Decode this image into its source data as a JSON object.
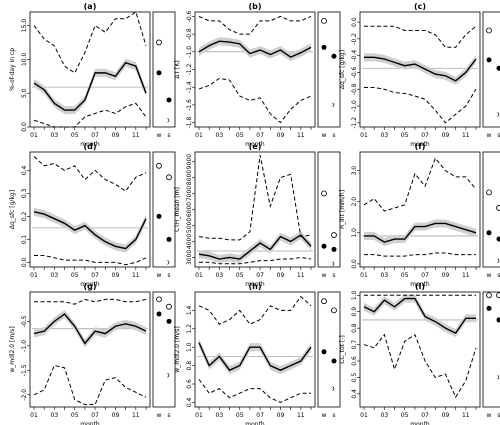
{
  "chart_data": [
    {
      "type": "line",
      "panel": "(a)",
      "ylabel": "%-of-day in cp",
      "xlabel": "month",
      "ylim": [
        0,
        17
      ],
      "yticks": [
        0,
        5,
        10,
        15
      ],
      "x": [
        1,
        2,
        3,
        4,
        5,
        6,
        7,
        8,
        9,
        10,
        11,
        12
      ],
      "series": [
        {
          "name": "",
          "role": "upper",
          "values": [
            15,
            13,
            12,
            9,
            8,
            11,
            15,
            14,
            16,
            16,
            17,
            12
          ]
        },
        {
          "name": "",
          "role": "mean",
          "values": [
            6.5,
            5.5,
            3.5,
            2.5,
            2.5,
            4,
            8,
            8,
            7.5,
            9.5,
            9,
            5
          ]
        },
        {
          "name": "",
          "role": "lower",
          "values": [
            1,
            0.5,
            0,
            0,
            0,
            1.5,
            2,
            2.5,
            2,
            3,
            3.5,
            1.5
          ]
        }
      ],
      "ref": 5.9,
      "side": {
        "w_open": 12.5,
        "w_closed": 8,
        "s_closed": 4,
        "s_small": 1
      }
    },
    {
      "type": "line",
      "panel": "(b)",
      "ylabel": "ΔT [K]",
      "xlabel": "month",
      "ylim": [
        -1.85,
        -0.55
      ],
      "yticks": [
        -1.8,
        -1.6,
        -1.4,
        -1.2,
        -1.0,
        -0.8,
        -0.6
      ],
      "x": [
        1,
        2,
        3,
        4,
        5,
        6,
        7,
        8,
        9,
        10,
        11,
        12
      ],
      "series": [
        {
          "name": "",
          "role": "upper",
          "values": [
            -0.6,
            -0.65,
            -0.65,
            -0.75,
            -0.8,
            -0.8,
            -0.65,
            -0.65,
            -0.6,
            -0.65,
            -0.65,
            -0.6
          ]
        },
        {
          "name": "",
          "role": "mean",
          "values": [
            -1.0,
            -0.93,
            -0.88,
            -0.89,
            -0.91,
            -1.02,
            -0.98,
            -1.03,
            -0.98,
            -1.06,
            -1.01,
            -0.95
          ]
        },
        {
          "name": "",
          "role": "lower",
          "values": [
            -1.42,
            -1.38,
            -1.3,
            -1.32,
            -1.5,
            -1.55,
            -1.52,
            -1.7,
            -1.8,
            -1.65,
            -1.55,
            -1.5
          ]
        }
      ],
      "ref": -1.0,
      "side": {
        "w_open": -0.65,
        "w_closed": -0.95,
        "s_closed": -1.05,
        "s_small": -1.6
      }
    },
    {
      "type": "line",
      "panel": "(c)",
      "ylabel": "Δq_sfc [g/kg]",
      "xlabel": "month",
      "ylim": [
        -1.25,
        0.12
      ],
      "yticks": [
        -1.2,
        -1.0,
        -0.8,
        -0.6,
        -0.4,
        -0.2,
        0.0
      ],
      "x": [
        1,
        2,
        3,
        4,
        5,
        6,
        7,
        8,
        9,
        10,
        11,
        12
      ],
      "series": [
        {
          "name": "",
          "role": "upper",
          "values": [
            -0.05,
            -0.05,
            -0.05,
            -0.05,
            -0.1,
            -0.1,
            -0.1,
            -0.15,
            -0.3,
            -0.3,
            -0.15,
            -0.05
          ]
        },
        {
          "name": "",
          "role": "mean",
          "values": [
            -0.42,
            -0.42,
            -0.44,
            -0.48,
            -0.52,
            -0.5,
            -0.56,
            -0.62,
            -0.64,
            -0.7,
            -0.6,
            -0.44
          ]
        },
        {
          "name": "",
          "role": "lower",
          "values": [
            -0.78,
            -0.78,
            -0.8,
            -0.84,
            -0.85,
            -0.88,
            -0.92,
            -1.05,
            -1.2,
            -1.1,
            -1.0,
            -0.8
          ]
        }
      ],
      "ref": -0.55,
      "side": {
        "w_open": -0.1,
        "w_closed": -0.45,
        "s_closed": -0.55,
        "s_small": -1.1
      }
    },
    {
      "type": "line",
      "panel": "(d)",
      "ylabel": "Δq_sfc [g/kg]",
      "xlabel": "month",
      "ylim": [
        -0.02,
        0.48
      ],
      "yticks": [
        0.0,
        0.1,
        0.2,
        0.3,
        0.4
      ],
      "x": [
        1,
        2,
        3,
        4,
        5,
        6,
        7,
        8,
        9,
        10,
        11,
        12
      ],
      "series": [
        {
          "name": "",
          "role": "upper",
          "values": [
            0.46,
            0.42,
            0.43,
            0.4,
            0.42,
            0.36,
            0.4,
            0.36,
            0.34,
            0.31,
            0.37,
            0.39
          ]
        },
        {
          "name": "",
          "role": "mean",
          "values": [
            0.22,
            0.21,
            0.19,
            0.17,
            0.14,
            0.16,
            0.12,
            0.09,
            0.07,
            0.06,
            0.1,
            0.19
          ]
        },
        {
          "name": "",
          "role": "lower",
          "values": [
            0.03,
            0.03,
            0.02,
            0.01,
            0.01,
            0.01,
            0.0,
            0.0,
            0.0,
            -0.01,
            0.0,
            0.02
          ]
        }
      ],
      "ref": 0.15,
      "side": {
        "w_open": 0.42,
        "w_closed": 0.2,
        "s_open": 0.37,
        "s_closed": 0.1,
        "s_small": 0.0
      }
    },
    {
      "type": "line",
      "panel": "(e)",
      "ylabel": "CTH_mean [m]",
      "xlabel": "month",
      "ylim": [
        2400,
        9600
      ],
      "yticks": [
        3000,
        4000,
        5000,
        6000,
        7000,
        8000,
        9000
      ],
      "x": [
        1,
        2,
        3,
        4,
        5,
        6,
        7,
        8,
        9,
        10,
        11,
        12
      ],
      "series": [
        {
          "name": "",
          "role": "upper",
          "values": [
            4300,
            4200,
            4200,
            4100,
            4100,
            4600,
            9400,
            6200,
            8000,
            8200,
            4300,
            4400
          ]
        },
        {
          "name": "",
          "role": "mean",
          "values": [
            3200,
            3100,
            2900,
            3000,
            2900,
            3400,
            3900,
            3500,
            4300,
            4000,
            4400,
            3700
          ]
        },
        {
          "name": "",
          "role": "lower",
          "values": [
            2700,
            2700,
            2600,
            2600,
            2600,
            2700,
            2800,
            2800,
            2900,
            2900,
            3000,
            2900
          ]
        }
      ],
      "ref": 3400,
      "side": {
        "w_open": 7000,
        "w_closed": 3700,
        "s_open": 4400,
        "s_closed": 3500,
        "s_small": 2600
      }
    },
    {
      "type": "line",
      "panel": "(f)",
      "ylabel": "R_int [mm/h]",
      "xlabel": "month",
      "ylim": [
        -0.1,
        3.6
      ],
      "yticks": [
        0,
        1,
        2,
        3
      ],
      "x": [
        1,
        2,
        3,
        4,
        5,
        6,
        7,
        8,
        9,
        10,
        11,
        12
      ],
      "series": [
        {
          "name": "",
          "role": "upper",
          "values": [
            1.9,
            2.1,
            1.7,
            1.8,
            1.9,
            2.9,
            2.5,
            3.4,
            3.0,
            2.8,
            2.8,
            2.4
          ]
        },
        {
          "name": "",
          "role": "mean",
          "values": [
            0.9,
            0.9,
            0.7,
            0.8,
            0.8,
            1.2,
            1.2,
            1.3,
            1.3,
            1.2,
            1.1,
            1.0
          ]
        },
        {
          "name": "",
          "role": "lower",
          "values": [
            0.3,
            0.3,
            0.25,
            0.25,
            0.25,
            0.3,
            0.3,
            0.35,
            0.35,
            0.3,
            0.3,
            0.3
          ]
        }
      ],
      "ref": 0.9,
      "side": {
        "w_open": 2.3,
        "w_closed": 1.0,
        "s_open": 1.8,
        "s_closed": 0.8,
        "s_small": 0.1
      }
    },
    {
      "type": "line",
      "panel": "(g)",
      "ylabel": "w_mdl2.0 [m/s]",
      "xlabel": "month",
      "ylim": [
        -2.25,
        0.1
      ],
      "yticks": [
        -2.0,
        -1.5,
        -1.0,
        -0.5
      ],
      "x": [
        1,
        2,
        3,
        4,
        5,
        6,
        7,
        8,
        9,
        10,
        11,
        12
      ],
      "series": [
        {
          "name": "",
          "role": "upper",
          "values": [
            -0.1,
            -0.1,
            -0.1,
            -0.1,
            -0.15,
            -0.05,
            -0.1,
            -0.05,
            -0.05,
            -0.1,
            -0.1,
            -0.05
          ]
        },
        {
          "name": "",
          "role": "mean",
          "values": [
            -0.75,
            -0.7,
            -0.5,
            -0.35,
            -0.6,
            -0.95,
            -0.7,
            -0.75,
            -0.6,
            -0.55,
            -0.6,
            -0.7
          ]
        },
        {
          "name": "",
          "role": "lower",
          "values": [
            -2.0,
            -1.9,
            -1.4,
            -1.45,
            -2.1,
            -2.2,
            -2.2,
            -1.7,
            -1.65,
            -1.85,
            -1.95,
            -2.05
          ]
        }
      ],
      "ref": -0.65,
      "side": {
        "w_open": -0.05,
        "w_closed": -0.35,
        "s_open": -0.2,
        "s_closed": -0.5,
        "s_small": -1.6
      }
    },
    {
      "type": "line",
      "panel": "(h)",
      "ylabel": "w_mdl2.0 [m/s]",
      "xlabel": "month",
      "ylim": [
        0.35,
        1.6
      ],
      "yticks": [
        0.4,
        0.6,
        0.8,
        1.0,
        1.2,
        1.4
      ],
      "x": [
        1,
        2,
        3,
        4,
        5,
        6,
        7,
        8,
        9,
        10,
        11,
        12
      ],
      "series": [
        {
          "name": "",
          "role": "upper",
          "values": [
            1.45,
            1.4,
            1.25,
            1.3,
            1.4,
            1.25,
            1.3,
            1.45,
            1.4,
            1.4,
            1.55,
            1.45
          ]
        },
        {
          "name": "",
          "role": "mean",
          "values": [
            1.05,
            0.8,
            0.9,
            0.75,
            0.8,
            1.0,
            1.0,
            0.8,
            0.75,
            0.8,
            0.85,
            1.0
          ]
        },
        {
          "name": "",
          "role": "lower",
          "values": [
            0.65,
            0.5,
            0.55,
            0.45,
            0.5,
            0.55,
            0.55,
            0.45,
            0.4,
            0.45,
            0.5,
            0.5
          ]
        }
      ],
      "ref": 0.9,
      "side": {
        "w_open": 1.5,
        "w_closed": 0.95,
        "s_open": 1.4,
        "s_closed": 0.85,
        "s_small": 0.55
      }
    },
    {
      "type": "line",
      "panel": "(i)",
      "ylabel": "CC_tot [-]",
      "xlabel": "month",
      "ylim": [
        0.32,
        1.02
      ],
      "yticks": [
        0.4,
        0.5,
        0.6,
        0.7,
        0.8,
        0.9,
        1.0
      ],
      "x": [
        1,
        2,
        3,
        4,
        5,
        6,
        7,
        8,
        9,
        10,
        11,
        12
      ],
      "series": [
        {
          "name": "",
          "role": "upper",
          "values": [
            1.0,
            1.0,
            1.0,
            1.0,
            1.0,
            1.0,
            1.0,
            1.0,
            1.0,
            1.0,
            1.0,
            1.0
          ]
        },
        {
          "name": "",
          "role": "mean",
          "values": [
            0.93,
            0.9,
            0.97,
            0.93,
            0.98,
            0.98,
            0.87,
            0.84,
            0.8,
            0.77,
            0.86,
            0.86
          ]
        },
        {
          "name": "",
          "role": "lower",
          "values": [
            0.7,
            0.68,
            0.76,
            0.55,
            0.72,
            0.76,
            0.6,
            0.5,
            0.52,
            0.38,
            0.48,
            0.68
          ]
        }
      ],
      "ref": 0.85,
      "side": {
        "w_open": 1.0,
        "w_closed": 0.92,
        "s_open": 1.0,
        "s_closed": 0.85,
        "s_small": 0.5
      }
    }
  ],
  "x_tick_labels": [
    "01",
    "03",
    "05",
    "07",
    "09",
    "11"
  ],
  "side_labels": [
    "w",
    "s"
  ],
  "colors": {
    "line": "#000000",
    "band": "#d0d0d0",
    "ref": "#a8a8a8",
    "frame": "#000000"
  }
}
